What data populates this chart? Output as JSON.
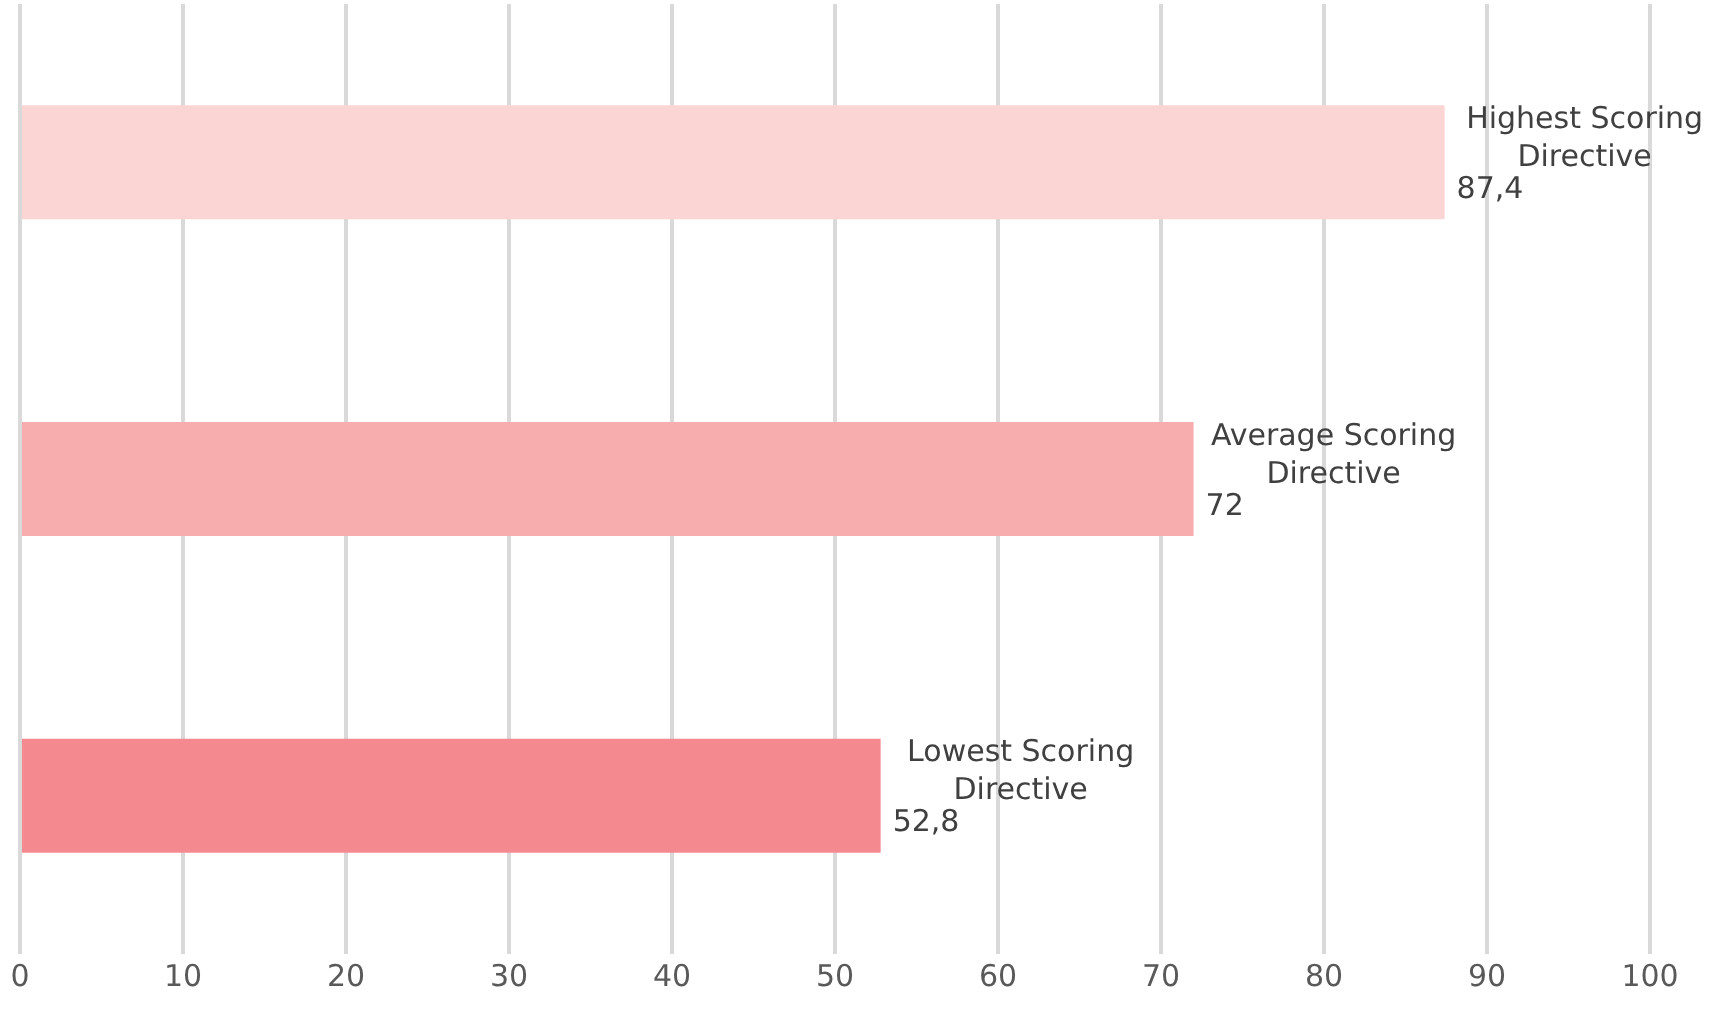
{
  "chart_data": {
    "type": "bar",
    "orientation": "horizontal",
    "categories": [
      "Highest Scoring Directive",
      "Average Scoring Directive",
      "Lowest Scoring Directive"
    ],
    "values": [
      87.4,
      72,
      52.8
    ],
    "colors": [
      "#fbd5d3",
      "#f7adad",
      "#f48a90"
    ],
    "value_labels": [
      "87,4",
      "72",
      "52,8"
    ],
    "xlim": [
      0,
      100
    ],
    "xticks": [
      0,
      10,
      20,
      30,
      40,
      50,
      60,
      70,
      80,
      90,
      100
    ],
    "grid": "x",
    "tick_labels": "x"
  }
}
